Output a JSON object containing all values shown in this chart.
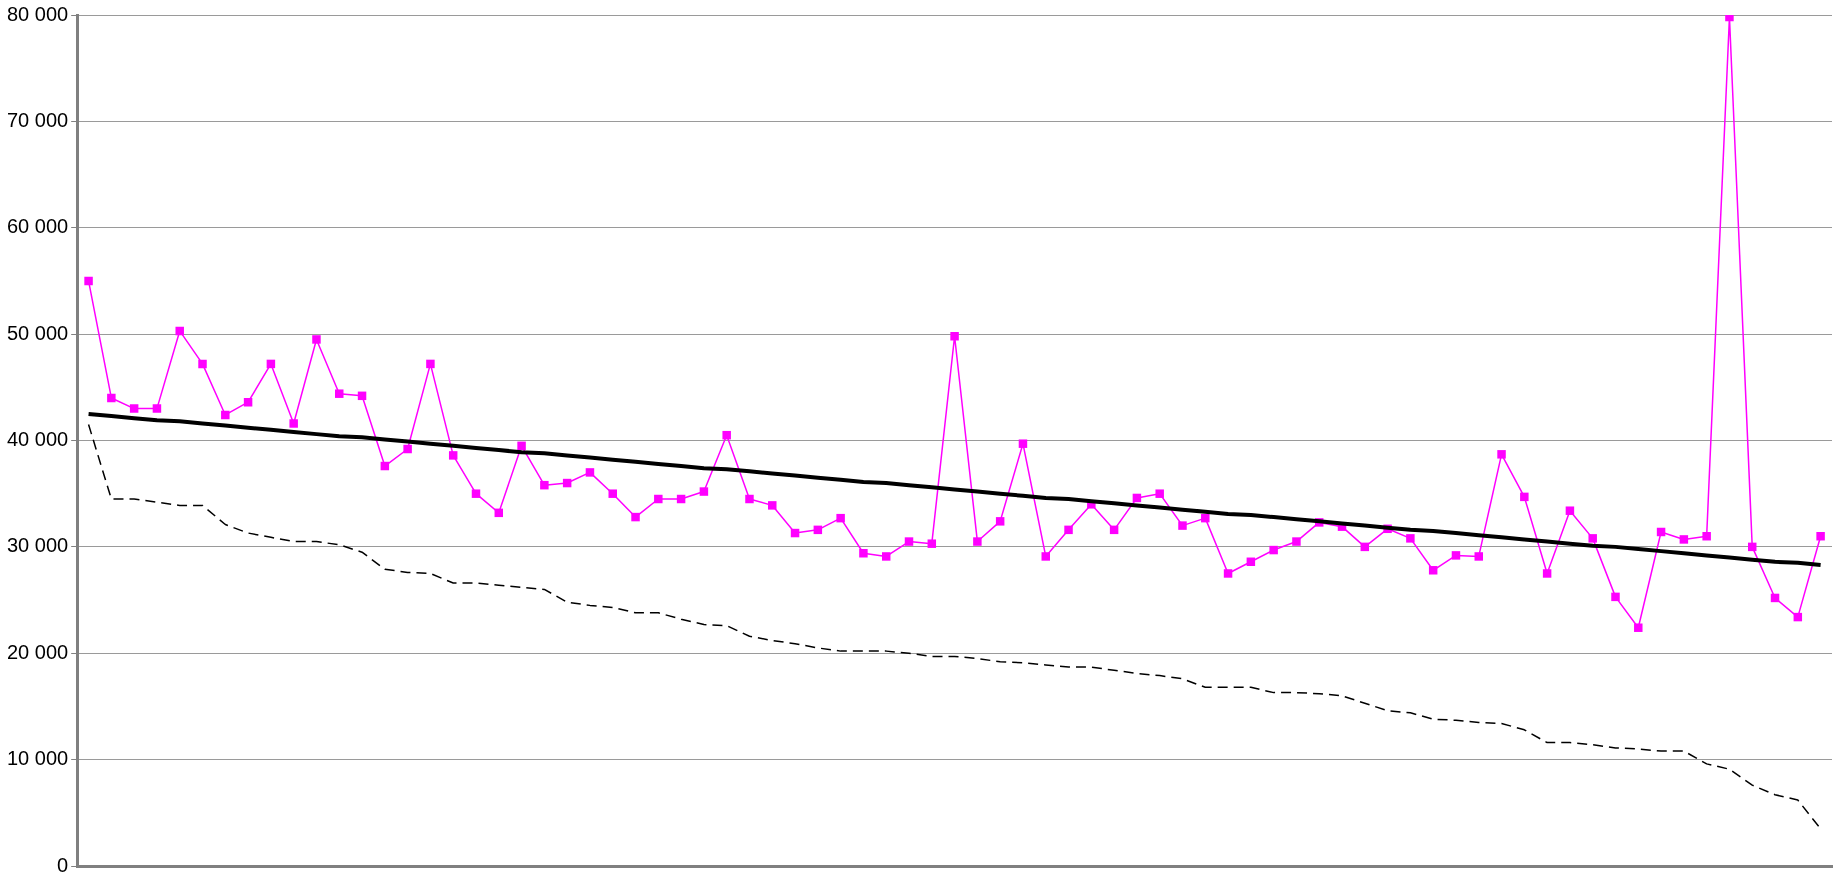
{
  "chart_data": {
    "type": "line",
    "tick_labels": "y",
    "grid": "y",
    "legend": false,
    "ylim": [
      0,
      80000
    ],
    "yticks": [
      {
        "value": 0,
        "label": "0"
      },
      {
        "value": 10000,
        "label": "10 000"
      },
      {
        "value": 20000,
        "label": "20 000"
      },
      {
        "value": 30000,
        "label": "30 000"
      },
      {
        "value": 40000,
        "label": "40 000"
      },
      {
        "value": 50000,
        "label": "50 000"
      },
      {
        "value": 60000,
        "label": "60 000"
      },
      {
        "value": 70000,
        "label": "70 000"
      },
      {
        "value": 80000,
        "label": "80 000"
      }
    ],
    "categories": [
      null,
      null,
      null,
      null,
      null,
      null,
      null,
      null,
      null,
      null,
      null,
      null,
      null,
      null,
      null,
      null,
      null,
      null,
      null,
      null,
      null,
      null,
      null,
      null,
      null,
      null,
      null,
      null,
      null,
      null,
      null,
      null,
      null,
      null,
      null,
      null,
      null,
      null,
      null,
      null,
      null,
      null,
      null,
      null,
      null,
      null,
      null,
      null,
      null,
      null,
      null,
      null,
      null,
      null,
      null,
      null,
      null,
      null,
      null,
      null,
      null,
      null,
      null,
      null,
      null,
      null,
      null,
      null,
      null,
      null,
      null,
      null,
      null,
      null,
      null,
      null,
      null
    ],
    "series": [
      {
        "color": "#ff00ff",
        "marker": "square",
        "line_style": "solid",
        "values": [
          55000,
          44000,
          43000,
          43000,
          50300,
          47200,
          42400,
          43600,
          47200,
          41600,
          49500,
          44400,
          44200,
          37600,
          39200,
          47200,
          38600,
          35000,
          33200,
          39500,
          35800,
          36000,
          37000,
          35000,
          32800,
          34500,
          34500,
          35200,
          40500,
          34500,
          33900,
          31300,
          31600,
          32700,
          29400,
          29100,
          30500,
          30300,
          49800,
          30500,
          32400,
          39700,
          29100,
          31600,
          34000,
          31600,
          34600,
          35000,
          32000,
          32700,
          27500,
          28600,
          29700,
          30500,
          32300,
          31900,
          30000,
          31700,
          30800,
          27800,
          29200,
          29100,
          38700,
          34700,
          27500,
          33400,
          30800,
          25300,
          22400,
          31400,
          30700,
          31000,
          79800,
          30000,
          25200,
          23400,
          31000
        ]
      },
      {
        "color": "#000000",
        "marker": "none",
        "line_style": "dashed",
        "values": [
          41500,
          34500,
          34500,
          34200,
          33900,
          33900,
          32100,
          31300,
          30900,
          30500,
          30500,
          30200,
          29500,
          27900,
          27600,
          27500,
          26600,
          26600,
          26400,
          26200,
          26000,
          24800,
          24500,
          24300,
          23800,
          23800,
          23200,
          22700,
          22600,
          21600,
          21200,
          20900,
          20500,
          20200,
          20200,
          20200,
          20000,
          19700,
          19700,
          19500,
          19200,
          19100,
          18900,
          18700,
          18700,
          18400,
          18100,
          17900,
          17600,
          16800,
          16800,
          16800,
          16300,
          16300,
          16200,
          16000,
          15300,
          14600,
          14400,
          13800,
          13700,
          13500,
          13400,
          12800,
          11600,
          11600,
          11400,
          11100,
          11000,
          10800,
          10800,
          9600,
          9100,
          7600,
          6700,
          6200,
          3500
        ]
      },
      {
        "color": "#000000",
        "marker": "none",
        "line_style": "solid",
        "values": [
          42500,
          42300,
          42100,
          41900,
          41800,
          41600,
          41400,
          41200,
          41000,
          40800,
          40600,
          40400,
          40300,
          40100,
          39900,
          39700,
          39500,
          39300,
          39100,
          38900,
          38800,
          38600,
          38400,
          38200,
          38000,
          37800,
          37600,
          37400,
          37300,
          37100,
          36900,
          36700,
          36500,
          36300,
          36100,
          36000,
          35800,
          35600,
          35400,
          35200,
          35000,
          34800,
          34600,
          34500,
          34300,
          34100,
          33900,
          33700,
          33500,
          33300,
          33100,
          33000,
          32800,
          32600,
          32400,
          32200,
          32000,
          31800,
          31600,
          31500,
          31300,
          31100,
          30900,
          30700,
          30500,
          30300,
          30100,
          30000,
          29800,
          29600,
          29400,
          29200,
          29000,
          28800,
          28600,
          28500,
          28300
        ]
      }
    ]
  }
}
